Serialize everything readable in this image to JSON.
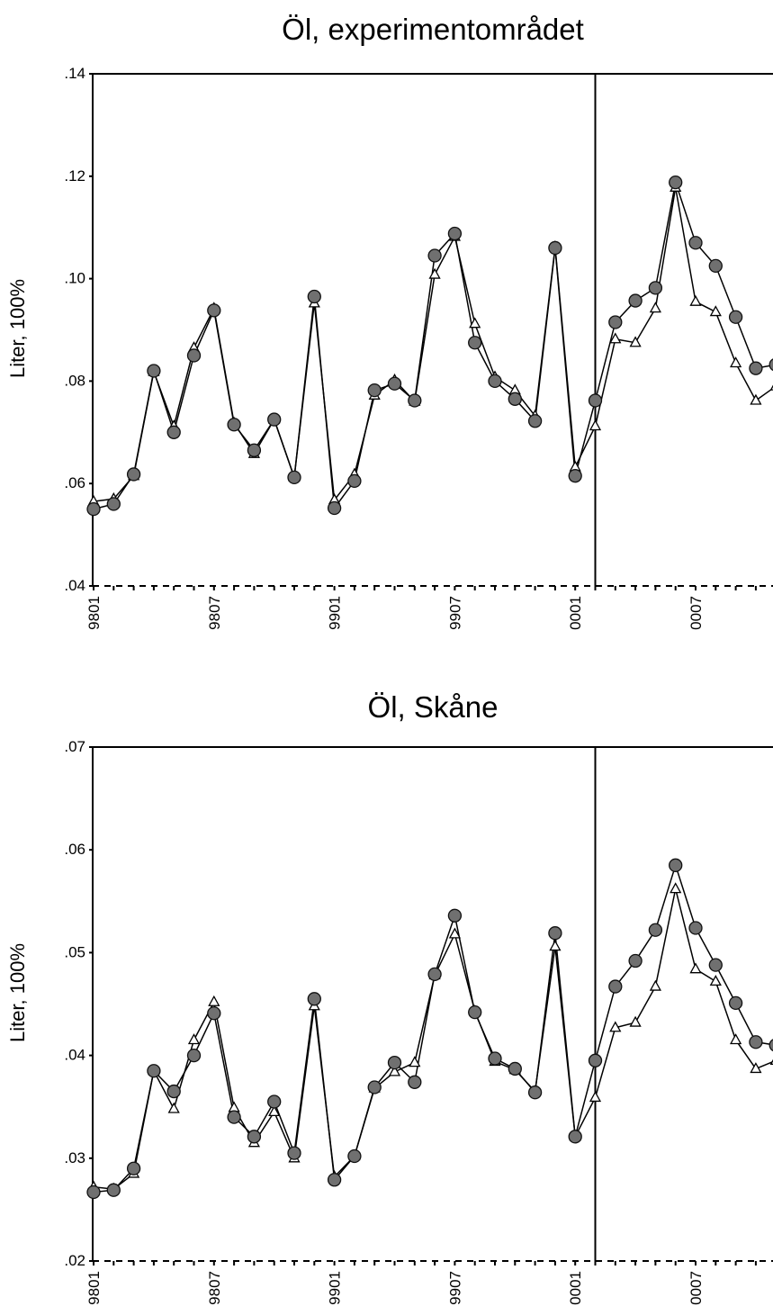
{
  "chart_data": [
    {
      "type": "line",
      "title": "Öl, experimentområdet",
      "ylabel": "Liter, 100%",
      "xlabel": "",
      "ylim": [
        0.04,
        0.14
      ],
      "y_ticks": [
        ".04",
        ".06",
        ".08",
        ".10",
        ".12",
        ".14"
      ],
      "x_tick_labels": [
        "9801",
        "9807",
        "9901",
        "9907",
        "0001",
        "0007"
      ],
      "reference_line_at": "0002",
      "grid": false,
      "series": [
        {
          "marker": "filled-circle",
          "values": [
            0.055,
            0.056,
            0.0618,
            0.082,
            0.07,
            0.085,
            0.0938,
            0.0715,
            0.0665,
            0.0725,
            0.0612,
            0.0965,
            0.0552,
            0.0605,
            0.0782,
            0.0795,
            0.0762,
            0.1045,
            0.1088,
            0.0875,
            0.08,
            0.0765,
            0.0722,
            0.106,
            0.0615,
            0.0762,
            0.0915,
            0.0957,
            0.0982,
            0.1188,
            0.107,
            0.1025,
            0.0925,
            0.0825,
            0.0832
          ]
        },
        {
          "marker": "open-triangle",
          "values": [
            0.0565,
            0.057,
            0.0615,
            0.0818,
            0.0712,
            0.0865,
            0.0942,
            0.0718,
            0.0658,
            0.0725,
            0.0612,
            0.0952,
            0.0568,
            0.0618,
            0.0772,
            0.0802,
            0.076,
            0.1008,
            0.1082,
            0.0912,
            0.0808,
            0.0782,
            0.0732,
            0.1062,
            0.0632,
            0.0712,
            0.0882,
            0.0875,
            0.0942,
            0.1178,
            0.0955,
            0.0935,
            0.0835,
            0.0762,
            0.079
          ]
        }
      ]
    },
    {
      "type": "line",
      "title": "Öl, Skåne",
      "ylabel": "Liter, 100%",
      "xlabel": "",
      "ylim": [
        0.02,
        0.07
      ],
      "y_ticks": [
        ".02",
        ".03",
        ".04",
        ".05",
        ".06",
        ".07"
      ],
      "x_tick_labels": [
        "9801",
        "9807",
        "9901",
        "9907",
        "0001",
        "0007"
      ],
      "reference_line_at": "0002",
      "grid": false,
      "series": [
        {
          "marker": "filled-circle",
          "values": [
            0.0267,
            0.0269,
            0.029,
            0.0385,
            0.0365,
            0.04,
            0.0441,
            0.034,
            0.0321,
            0.0355,
            0.0305,
            0.0455,
            0.0279,
            0.0302,
            0.0369,
            0.0393,
            0.0374,
            0.0479,
            0.0536,
            0.0442,
            0.0397,
            0.0387,
            0.0364,
            0.0519,
            0.0321,
            0.0395,
            0.0467,
            0.0492,
            0.0522,
            0.0585,
            0.0524,
            0.0488,
            0.0451,
            0.0413,
            0.041
          ]
        },
        {
          "marker": "open-triangle",
          "values": [
            0.0272,
            0.027,
            0.0285,
            0.0385,
            0.0348,
            0.0415,
            0.0452,
            0.0349,
            0.0315,
            0.0345,
            0.03,
            0.0448,
            0.0282,
            0.0302,
            0.0368,
            0.0384,
            0.0393,
            0.0478,
            0.0518,
            0.0443,
            0.0394,
            0.0386,
            0.0365,
            0.0506,
            0.0321,
            0.0359,
            0.0427,
            0.0432,
            0.0467,
            0.0562,
            0.0484,
            0.0472,
            0.0415,
            0.0387,
            0.0395
          ]
        }
      ]
    }
  ]
}
